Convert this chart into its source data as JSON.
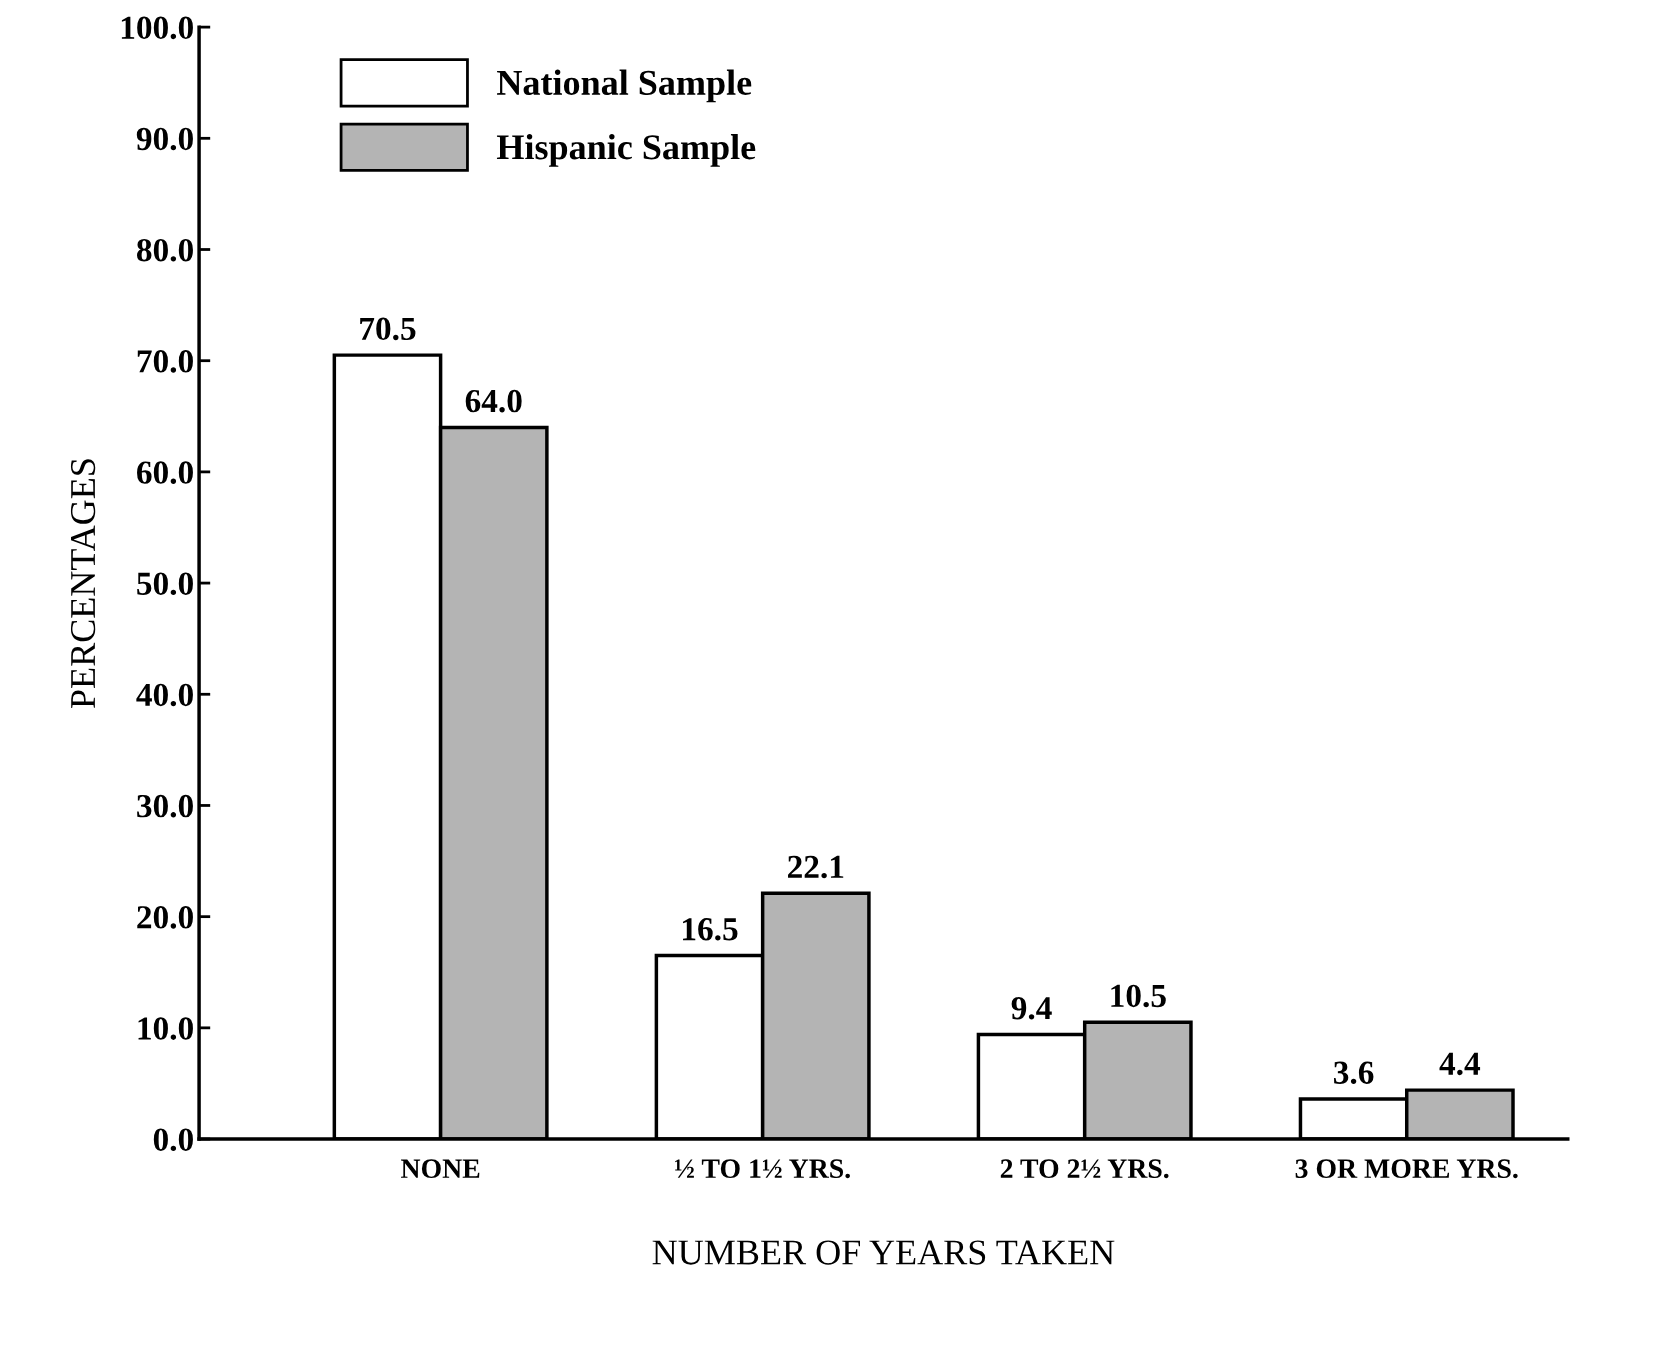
{
  "chart_data": {
    "type": "bar",
    "xlabel": "NUMBER OF YEARS TAKEN",
    "ylabel": "PERCENTAGES",
    "categories": [
      "NONE",
      "½ TO 1½ YRS.",
      "2 TO 2½ YRS.",
      "3 OR MORE YRS."
    ],
    "series": [
      {
        "name": "National Sample",
        "color": "#ffffff",
        "values": [
          70.5,
          16.5,
          9.4,
          3.6
        ],
        "value_labels": [
          "70.5",
          "16.5",
          "9.4",
          "3.6"
        ]
      },
      {
        "name": "Hispanic Sample",
        "color": "#b4b4b4",
        "values": [
          64.0,
          22.1,
          10.5,
          4.4
        ],
        "value_labels": [
          "64.0",
          "22.1",
          "10.5",
          "4.4"
        ]
      }
    ],
    "ylim": [
      0,
      100
    ],
    "yticks": [
      {
        "value": 0,
        "label": "0.0"
      },
      {
        "value": 10,
        "label": "10.0"
      },
      {
        "value": 20,
        "label": "20.0"
      },
      {
        "value": 30,
        "label": "30.0"
      },
      {
        "value": 40,
        "label": "40.0"
      },
      {
        "value": 50,
        "label": "50.0"
      },
      {
        "value": 60,
        "label": "60.0"
      },
      {
        "value": 70,
        "label": "70.0"
      },
      {
        "value": 80,
        "label": "80.0"
      },
      {
        "value": 90,
        "label": "90.0"
      },
      {
        "value": 100,
        "label": "100.0"
      }
    ],
    "legend": "top left",
    "grid": false
  }
}
